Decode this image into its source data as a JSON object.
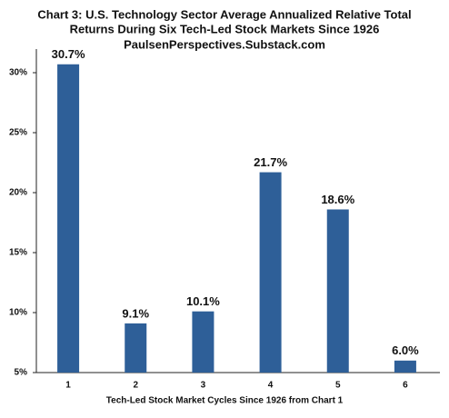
{
  "chart_data": {
    "type": "bar",
    "title": [
      "Chart 3: U.S. Technology Sector Average Annualized Relative Total",
      "Returns During Six Tech-Led Stock Markets Since 1926",
      "PaulsenPerspectives.Substack.com"
    ],
    "x_label": "Tech-Led Stock Market Cycles Since 1926 from Chart 1",
    "categories": [
      "1",
      "2",
      "3",
      "4",
      "5",
      "6"
    ],
    "values": [
      30.7,
      9.1,
      10.1,
      21.7,
      18.6,
      6.0
    ],
    "value_labels": [
      "30.7%",
      "9.1%",
      "10.1%",
      "21.7%",
      "18.6%",
      "6.0%"
    ],
    "color": "#2e5f98",
    "ylim": [
      5,
      32
    ],
    "yticks": [
      {
        "value": 5,
        "label": "5%"
      },
      {
        "value": 10,
        "label": "10%"
      },
      {
        "value": 15,
        "label": "15%"
      },
      {
        "value": 20,
        "label": "20%"
      },
      {
        "value": 25,
        "label": "25%"
      },
      {
        "value": 30,
        "label": "30%"
      }
    ],
    "grid": false
  }
}
